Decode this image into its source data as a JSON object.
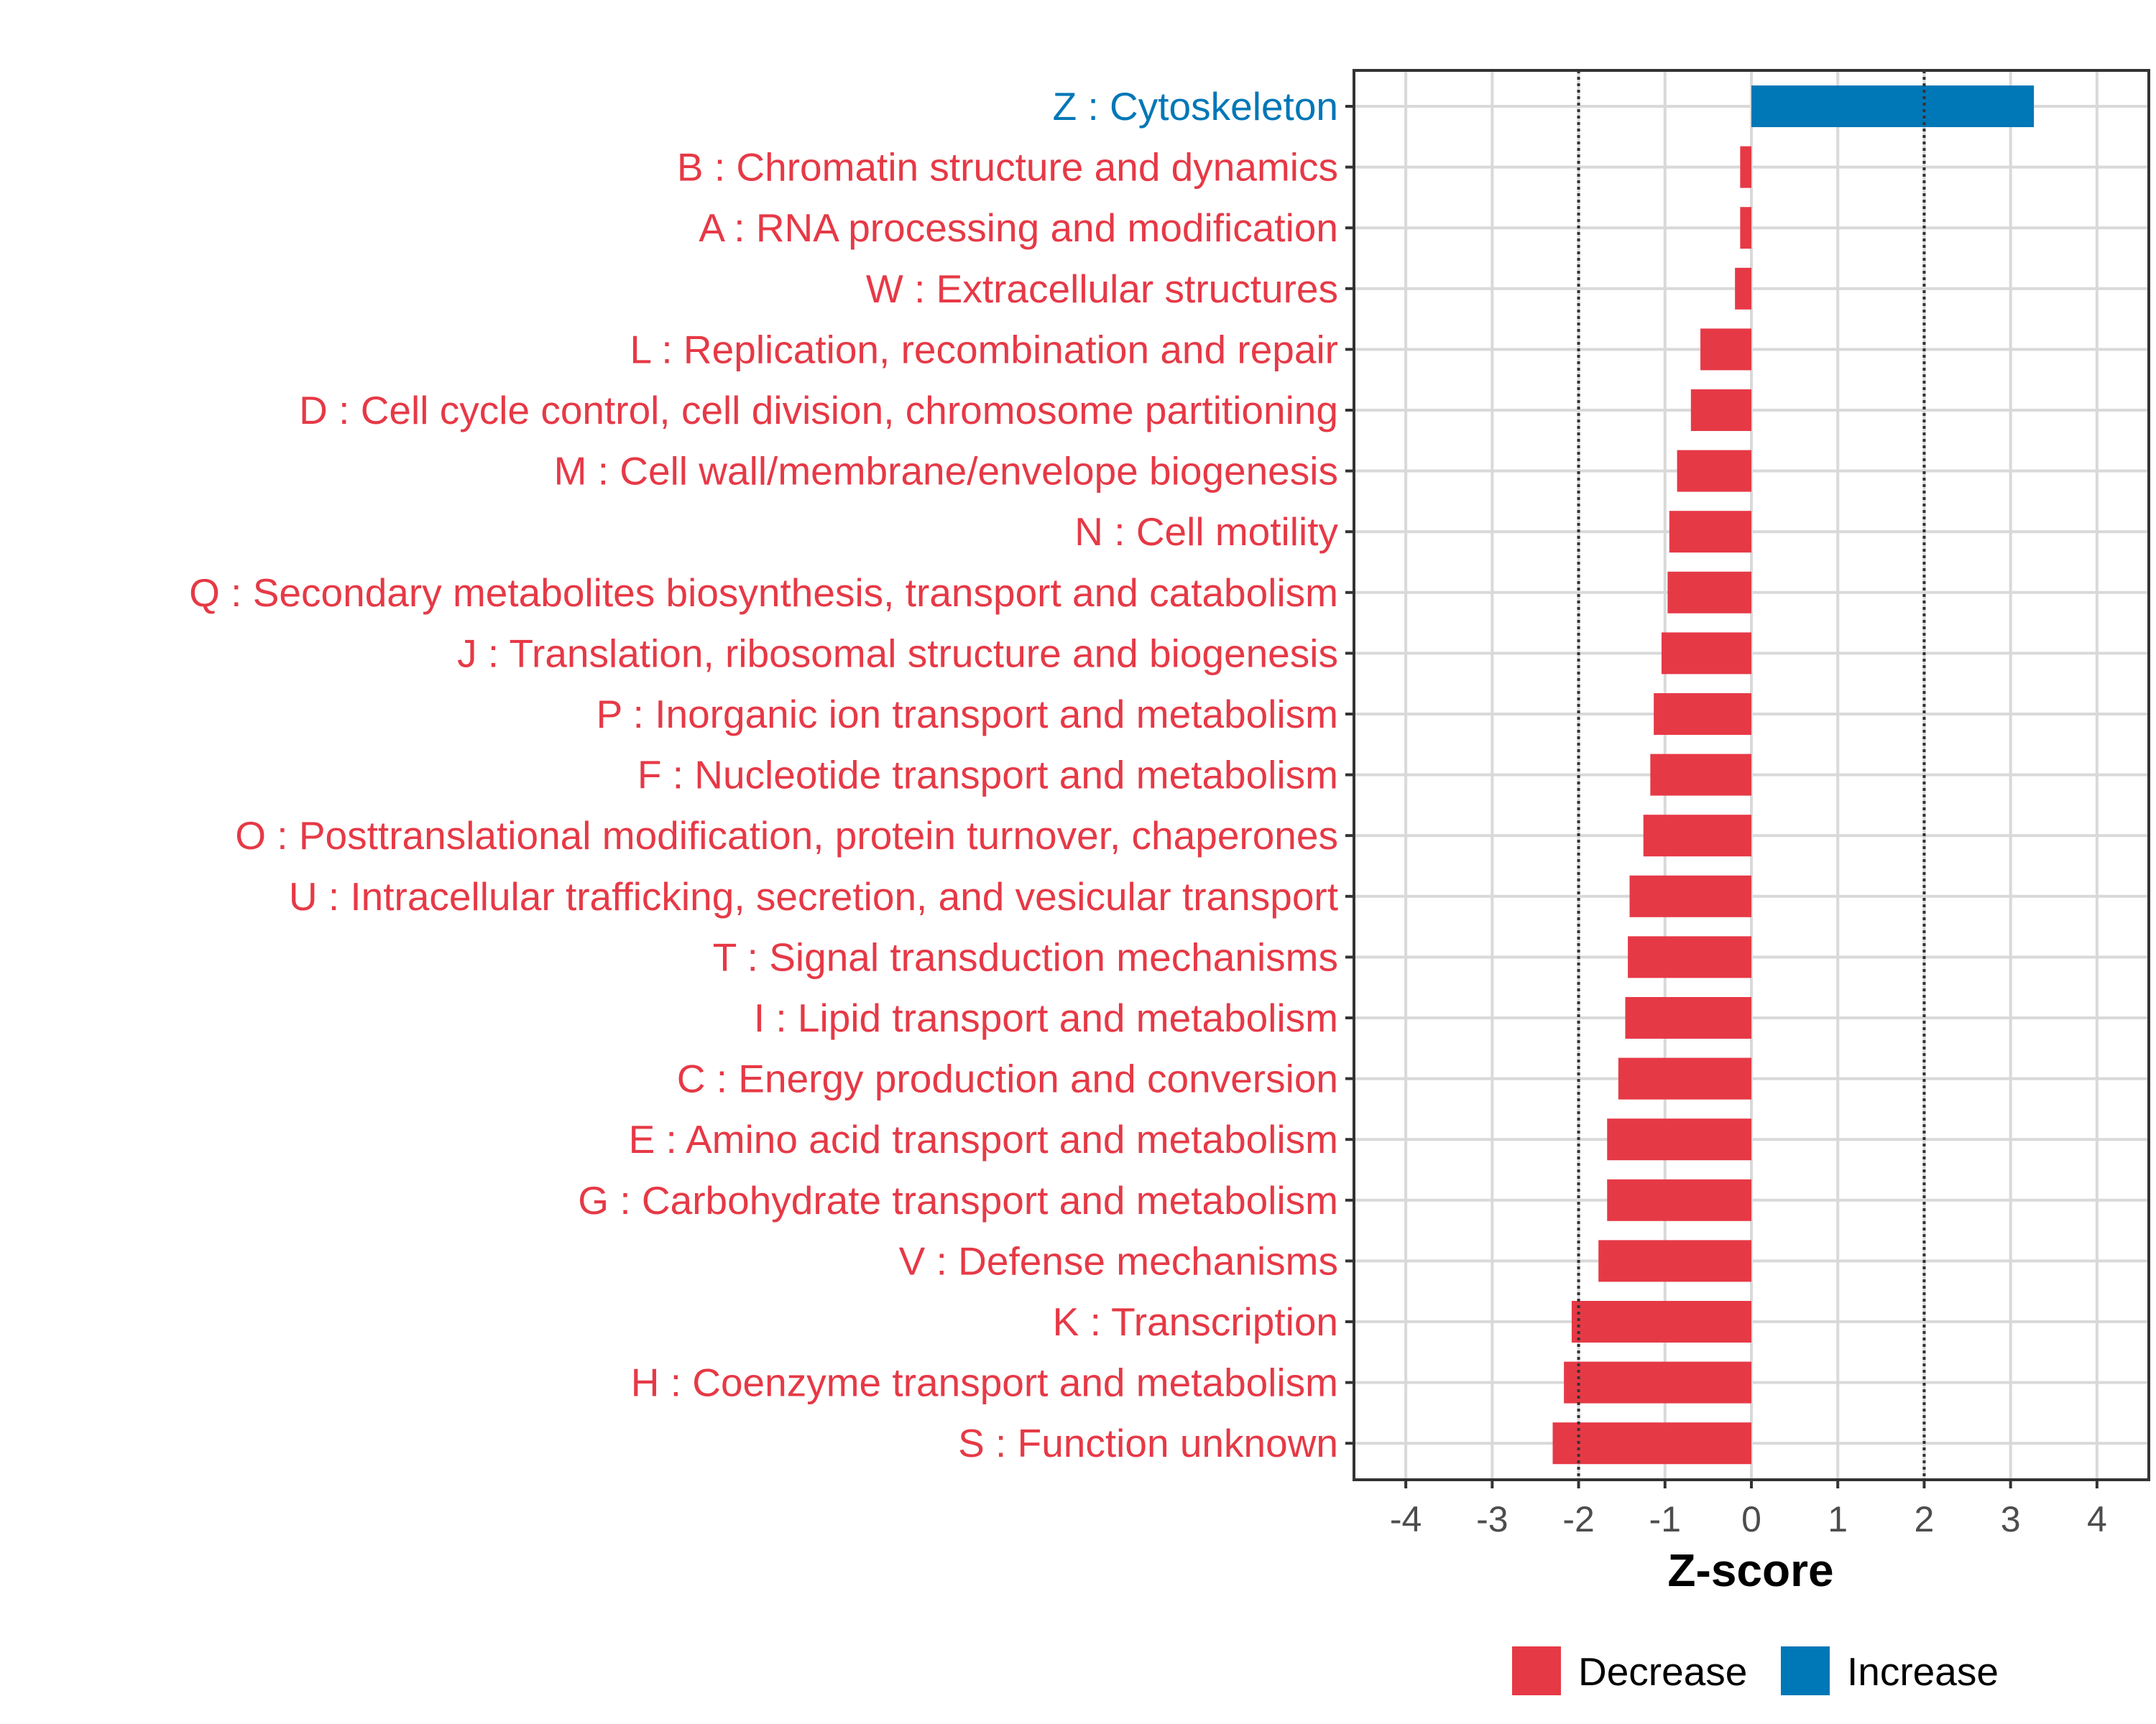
{
  "chart_data": {
    "type": "bar",
    "orientation": "horizontal",
    "title": "",
    "xlabel": "Z-score",
    "ylabel": "",
    "xlim": [
      -4.6,
      4.6
    ],
    "x_ticks": [
      -4,
      -3,
      -2,
      -1,
      0,
      1,
      2,
      3,
      4
    ],
    "x_tick_labels": [
      "-4",
      "-3",
      "-2",
      "-1",
      "0",
      "1",
      "2",
      "3",
      "4"
    ],
    "reference_lines": [
      -2,
      2
    ],
    "grid": true,
    "legend_position": "bottom",
    "colors": {
      "Decrease": "#E63946",
      "Increase": "#0077B6"
    },
    "legend": [
      {
        "name": "Decrease",
        "color": "#E63946"
      },
      {
        "name": "Increase",
        "color": "#0077B6"
      }
    ],
    "categories": [
      "Z : Cytoskeleton",
      "B : Chromatin structure and dynamics",
      "A : RNA processing and modification",
      "W : Extracellular structures",
      "L : Replication, recombination and repair",
      "D : Cell cycle control, cell division, chromosome partitioning",
      "M : Cell wall/membrane/envelope biogenesis",
      "N : Cell motility",
      "Q : Secondary metabolites biosynthesis, transport and catabolism",
      "J : Translation, ribosomal structure and biogenesis",
      "P : Inorganic ion transport and metabolism",
      "F : Nucleotide transport and metabolism",
      "O : Posttranslational modification, protein turnover, chaperones",
      "U : Intracellular trafficking, secretion, and vesicular transport",
      "T : Signal transduction mechanisms",
      "I : Lipid transport and metabolism",
      "C : Energy production and conversion",
      "E : Amino acid transport and metabolism",
      "G : Carbohydrate transport and metabolism",
      "V : Defense mechanisms",
      "K : Transcription",
      "H : Coenzyme transport and metabolism",
      "S : Function unknown"
    ],
    "values": [
      3.27,
      -0.13,
      -0.13,
      -0.19,
      -0.59,
      -0.7,
      -0.86,
      -0.95,
      -0.97,
      -1.04,
      -1.13,
      -1.17,
      -1.25,
      -1.41,
      -1.43,
      -1.46,
      -1.54,
      -1.67,
      -1.67,
      -1.77,
      -2.08,
      -2.17,
      -2.3
    ],
    "direction": [
      "Increase",
      "Decrease",
      "Decrease",
      "Decrease",
      "Decrease",
      "Decrease",
      "Decrease",
      "Decrease",
      "Decrease",
      "Decrease",
      "Decrease",
      "Decrease",
      "Decrease",
      "Decrease",
      "Decrease",
      "Decrease",
      "Decrease",
      "Decrease",
      "Decrease",
      "Decrease",
      "Decrease",
      "Decrease",
      "Decrease"
    ]
  }
}
